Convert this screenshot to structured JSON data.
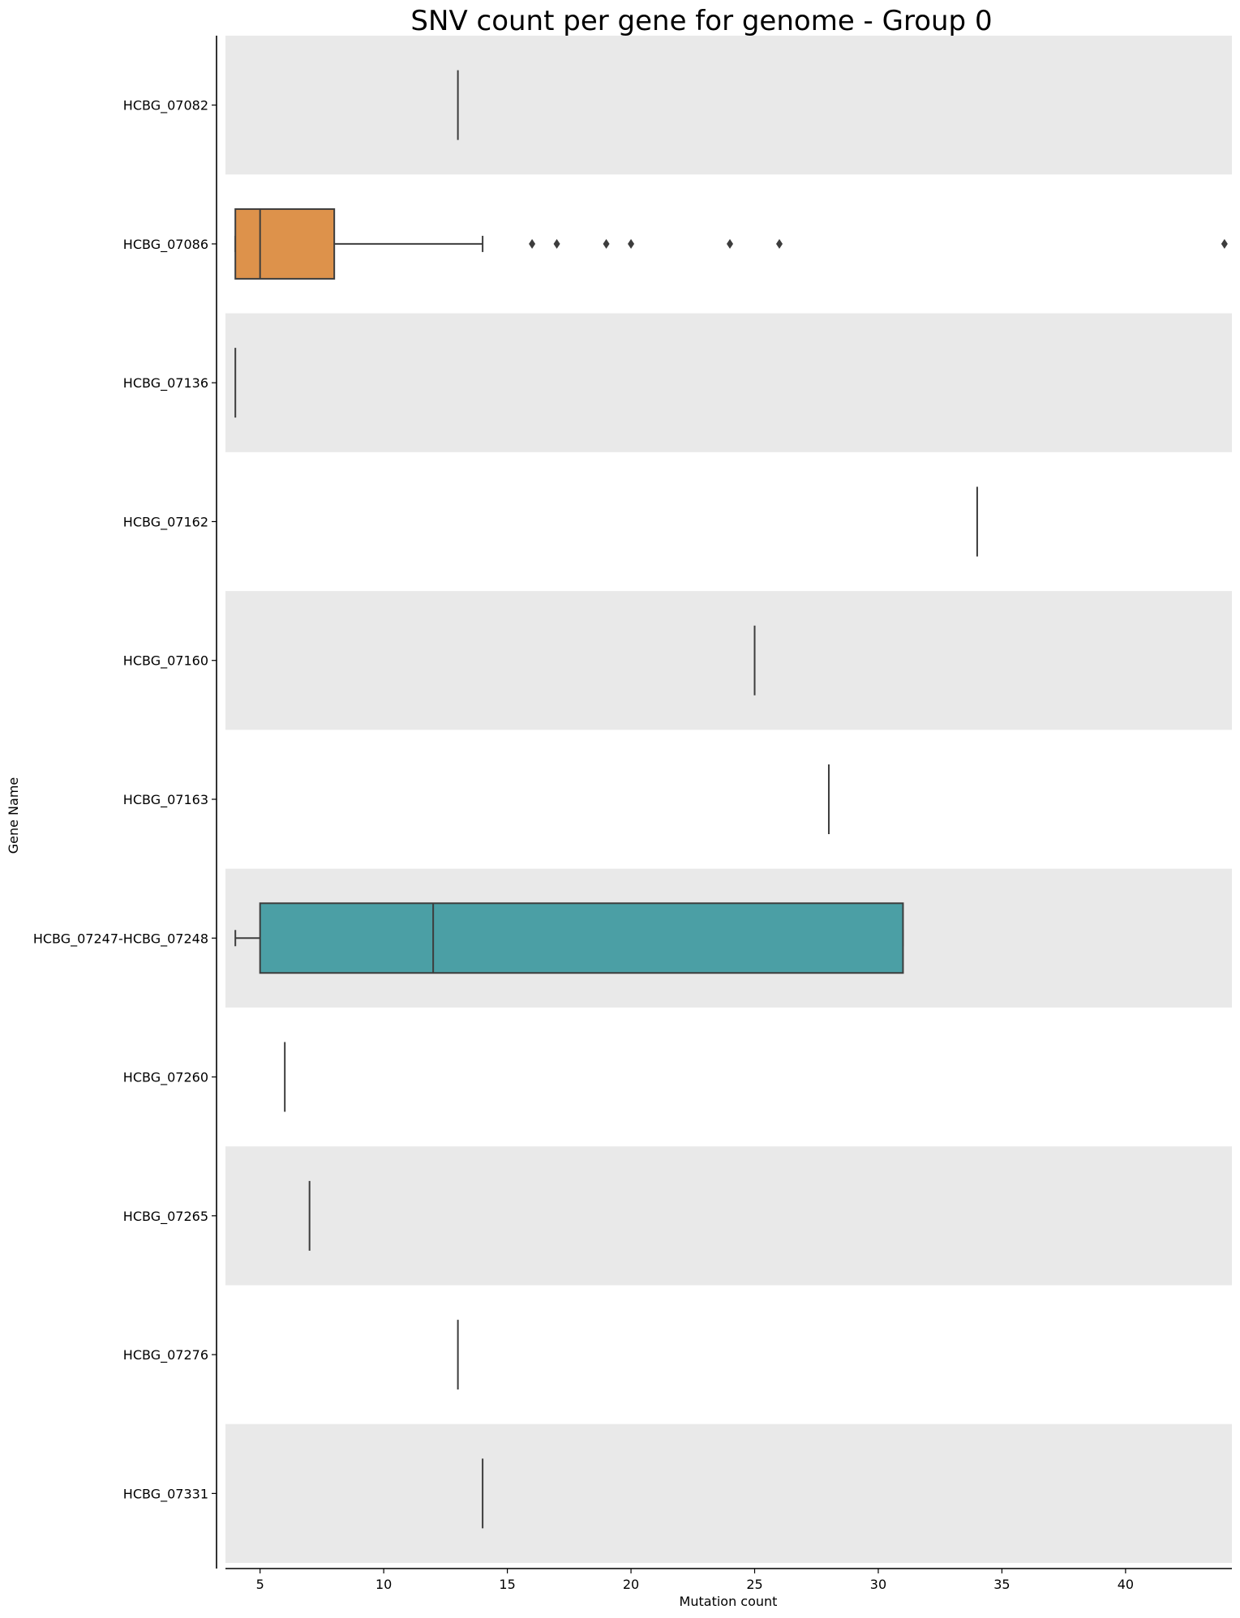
{
  "chart_data": {
    "type": "box",
    "orientation": "horizontal",
    "title": "SNV count per gene for genome - Group 0",
    "xlabel": "Mutation count",
    "ylabel": "Gene Name",
    "xlim": [
      3.6,
      44.3
    ],
    "xticks": [
      5,
      10,
      15,
      20,
      25,
      30,
      35,
      40
    ],
    "grid": false,
    "alternating_row_shading": true,
    "colors": {
      "band": "#e9e9e9",
      "line": "#3d3d3d",
      "HCBG_07086": "#dd924b",
      "HCBG_07247-HCBG_07248": "#4b9fa5"
    },
    "categories": [
      "HCBG_07082",
      "HCBG_07086",
      "HCBG_07136",
      "HCBG_07162",
      "HCBG_07160",
      "HCBG_07163",
      "HCBG_07247-HCBG_07248",
      "HCBG_07260",
      "HCBG_07265",
      "HCBG_07276",
      "HCBG_07331"
    ],
    "boxes": [
      {
        "gene": "HCBG_07082",
        "whislo": 13,
        "q1": 13,
        "med": 13,
        "q3": 13,
        "whishi": 13,
        "fliers": []
      },
      {
        "gene": "HCBG_07086",
        "whislo": 4,
        "q1": 4,
        "med": 5,
        "q3": 8,
        "whishi": 14,
        "fliers": [
          16,
          17,
          19,
          20,
          24,
          26,
          44
        ]
      },
      {
        "gene": "HCBG_07136",
        "whislo": 4,
        "q1": 4,
        "med": 4,
        "q3": 4,
        "whishi": 4,
        "fliers": []
      },
      {
        "gene": "HCBG_07162",
        "whislo": 34,
        "q1": 34,
        "med": 34,
        "q3": 34,
        "whishi": 34,
        "fliers": []
      },
      {
        "gene": "HCBG_07160",
        "whislo": 25,
        "q1": 25,
        "med": 25,
        "q3": 25,
        "whishi": 25,
        "fliers": []
      },
      {
        "gene": "HCBG_07163",
        "whislo": 28,
        "q1": 28,
        "med": 28,
        "q3": 28,
        "whishi": 28,
        "fliers": []
      },
      {
        "gene": "HCBG_07247-HCBG_07248",
        "whislo": 4,
        "q1": 5,
        "med": 12,
        "q3": 31,
        "whishi": 31,
        "fliers": []
      },
      {
        "gene": "HCBG_07260",
        "whislo": 6,
        "q1": 6,
        "med": 6,
        "q3": 6,
        "whishi": 6,
        "fliers": []
      },
      {
        "gene": "HCBG_07265",
        "whislo": 7,
        "q1": 7,
        "med": 7,
        "q3": 7,
        "whishi": 7,
        "fliers": []
      },
      {
        "gene": "HCBG_07276",
        "whislo": 13,
        "q1": 13,
        "med": 13,
        "q3": 13,
        "whishi": 13,
        "fliers": []
      },
      {
        "gene": "HCBG_07331",
        "whislo": 14,
        "q1": 14,
        "med": 14,
        "q3": 14,
        "whishi": 14,
        "fliers": []
      }
    ]
  }
}
